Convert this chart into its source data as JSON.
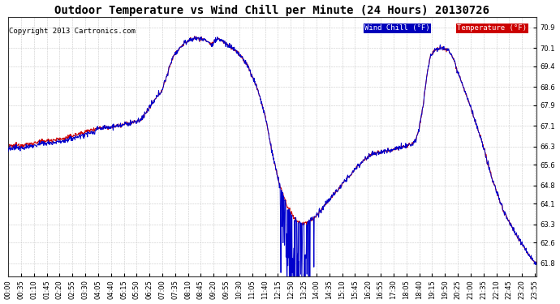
{
  "title": "Outdoor Temperature vs Wind Chill per Minute (24 Hours) 20130726",
  "copyright": "Copyright 2013 Cartronics.com",
  "legend_labels": [
    "Wind Chill (°F)",
    "Temperature (°F)"
  ],
  "legend_bg_colors": [
    "#0000aa",
    "#cc0000"
  ],
  "wind_chill_color": "#0000cc",
  "temp_color": "#cc0000",
  "bg_color": "#ffffff",
  "plot_bg_color": "#ffffff",
  "grid_color": "#bbbbbb",
  "yticks": [
    61.8,
    62.6,
    63.3,
    64.1,
    64.8,
    65.6,
    66.3,
    67.1,
    67.9,
    68.6,
    69.4,
    70.1,
    70.9
  ],
  "ylim": [
    61.3,
    71.3
  ],
  "num_minutes": 1440,
  "title_fontsize": 10,
  "copyright_fontsize": 6.5,
  "tick_label_fontsize": 6,
  "xtick_interval": 35
}
